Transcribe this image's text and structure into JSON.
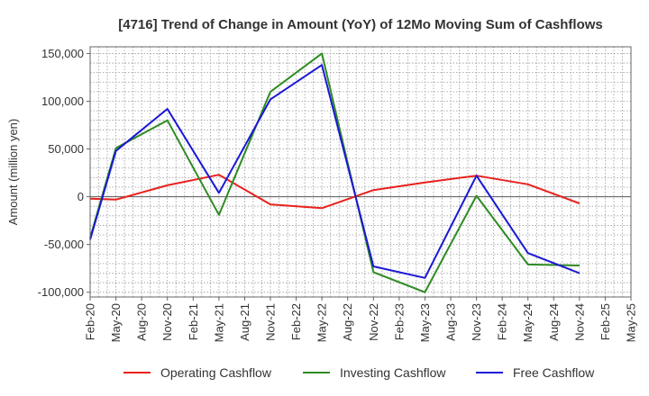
{
  "chart_data": {
    "type": "line",
    "title": "[4716]  Trend of Change in Amount (YoY) of 12Mo Moving Sum of Cashflows",
    "xlabel": "",
    "ylabel": "Amount (million yen)",
    "ylim": [
      -105000,
      157000
    ],
    "yticks": [
      150000,
      100000,
      50000,
      0,
      -50000,
      -100000
    ],
    "ytick_labels": [
      "150,000",
      "100,000",
      "50,000",
      "0",
      "-50,000",
      "-100,000"
    ],
    "categories": [
      "Feb-20",
      "May-20",
      "Aug-20",
      "Nov-20",
      "Feb-21",
      "May-21",
      "Aug-21",
      "Nov-21",
      "Feb-22",
      "May-22",
      "Aug-22",
      "Nov-22",
      "Feb-23",
      "May-23",
      "Aug-23",
      "Nov-23",
      "Feb-24",
      "May-24",
      "Aug-24",
      "Nov-24",
      "Feb-25",
      "May-25"
    ],
    "grid": true,
    "legend_position": "bottom",
    "series": [
      {
        "name": "Operating Cashflow",
        "color": "#e8211d",
        "values": [
          -2000,
          -3000,
          null,
          12000,
          null,
          23000,
          null,
          -8000,
          null,
          -12000,
          null,
          7000,
          null,
          15000,
          null,
          22000,
          null,
          13000,
          null,
          -7000,
          null,
          null
        ]
      },
      {
        "name": "Investing Cashflow",
        "color": "#2e8b23",
        "values": [
          -43000,
          51000,
          null,
          80000,
          null,
          -19000,
          null,
          110000,
          null,
          150000,
          null,
          -79000,
          null,
          -100000,
          null,
          1000,
          null,
          -71000,
          null,
          -72000,
          null,
          null
        ]
      },
      {
        "name": "Free Cashflow",
        "color": "#1b17d6",
        "values": [
          -45000,
          48000,
          null,
          92000,
          null,
          4000,
          null,
          102000,
          null,
          138000,
          null,
          -73000,
          null,
          -85000,
          null,
          22000,
          null,
          -59000,
          null,
          -80000,
          null,
          null
        ]
      }
    ]
  }
}
